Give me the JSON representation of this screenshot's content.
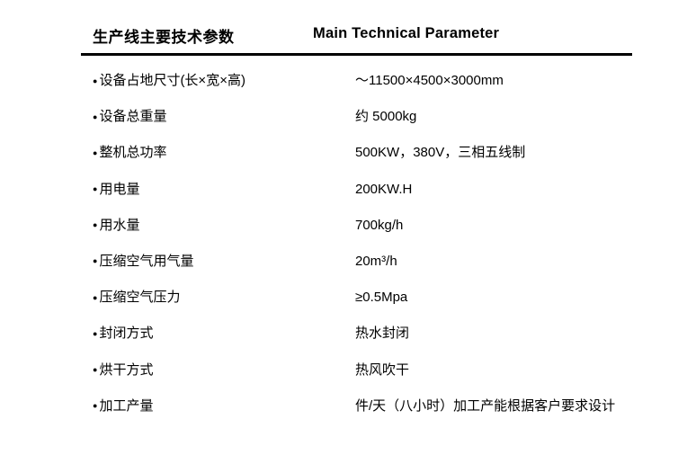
{
  "header": {
    "title_zh": "生产线主要技术参数",
    "title_en": "Main Technical Parameter"
  },
  "table": {
    "bullet": "●",
    "rows": [
      {
        "label": "设备占地尺寸(长×宽×高)",
        "value": "～11500×4500×3000mm"
      },
      {
        "label": "设备总重量",
        "value": "约 5000kg"
      },
      {
        "label": "整机总功率",
        "value": "500KW，380V，三相五线制"
      },
      {
        "label": "用电量",
        "value": "200KW.H"
      },
      {
        "label": "用水量",
        "value": "700kg/h"
      },
      {
        "label": "压缩空气用气量",
        "value": "20m³/h"
      },
      {
        "label": "压缩空气压力",
        "value": "≥0.5Mpa"
      },
      {
        "label": "封闭方式",
        "value": "热水封闭"
      },
      {
        "label": "烘干方式",
        "value": "热风吹干"
      },
      {
        "label": "加工产量",
        "value": "件/天（八小时）加工产能根据客户要求设计"
      }
    ]
  },
  "colors": {
    "text": "#000000",
    "background": "#ffffff",
    "rule": "#000000"
  }
}
